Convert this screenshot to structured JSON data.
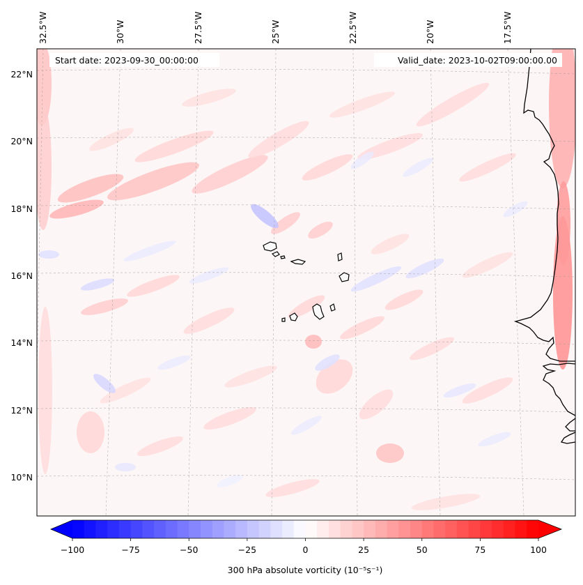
{
  "map": {
    "header": {
      "start_label": "Start date: 2023-09-30_00:00:00",
      "valid_label": "Valid_date: 2023-10-02T09:00:00.00"
    },
    "lon_labels": [
      "32.5°W",
      "30°W",
      "27.5°W",
      "25°W",
      "22.5°W",
      "20°W",
      "17.5°W"
    ],
    "lat_labels": [
      "22°N",
      "20°N",
      "18°N",
      "16°N",
      "14°N",
      "12°N",
      "10°N"
    ],
    "field": "300 hPa absolute vorticity",
    "colors": {
      "negative": "#0000ff",
      "positive": "#ff0000",
      "neutral": "#ffffff"
    }
  },
  "colorbar": {
    "title": "300 hPa absolute vorticity",
    "units": "(10⁻⁵s⁻¹)",
    "min": -100,
    "max": 100,
    "tick_labels": [
      "−100",
      "−75",
      "−50",
      "−25",
      "0",
      "25",
      "50",
      "75",
      "100"
    ],
    "extend": "both"
  }
}
